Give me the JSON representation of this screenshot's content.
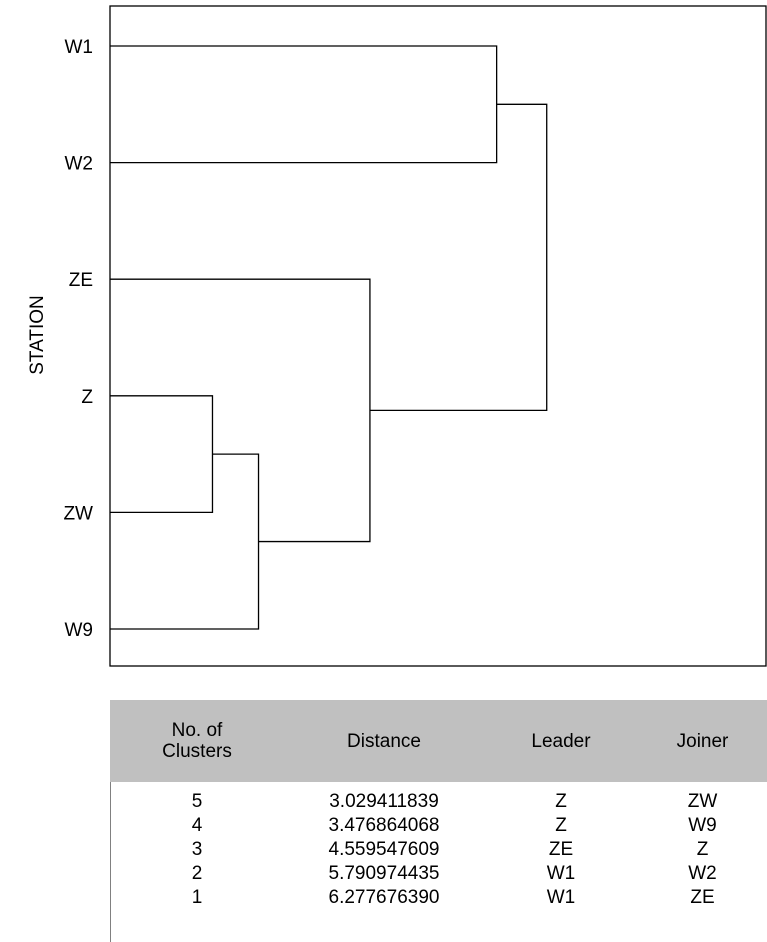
{
  "chart_data": {
    "type": "dendrogram",
    "ylabel": "STATION",
    "leaves": [
      "W1",
      "W2",
      "ZE",
      "Z",
      "ZW",
      "W9"
    ],
    "merges": [
      {
        "clusters": 5,
        "distance": 3.029411839,
        "leader": "Z",
        "joiner": "ZW"
      },
      {
        "clusters": 4,
        "distance": 3.476864068,
        "leader": "Z",
        "joiner": "W9"
      },
      {
        "clusters": 3,
        "distance": 4.559547609,
        "leader": "ZE",
        "joiner": "Z"
      },
      {
        "clusters": 2,
        "distance": 5.790974435,
        "leader": "W1",
        "joiner": "W2"
      },
      {
        "clusters": 1,
        "distance": 6.27767639,
        "leader": "W1",
        "joiner": "ZE"
      }
    ]
  },
  "table": {
    "headers": {
      "clusters_line1": "No. of",
      "clusters_line2": "Clusters",
      "distance": "Distance",
      "leader": "Leader",
      "joiner": "Joiner"
    },
    "rows": [
      {
        "clusters": "5",
        "distance": "3.029411839",
        "leader": "Z",
        "joiner": "ZW"
      },
      {
        "clusters": "4",
        "distance": "3.476864068",
        "leader": "Z",
        "joiner": "W9"
      },
      {
        "clusters": "3",
        "distance": "4.559547609",
        "leader": "ZE",
        "joiner": "Z"
      },
      {
        "clusters": "2",
        "distance": "5.790974435",
        "leader": "W1",
        "joiner": "W2"
      },
      {
        "clusters": "1",
        "distance": "6.277676390",
        "leader": "W1",
        "joiner": "ZE"
      }
    ]
  }
}
